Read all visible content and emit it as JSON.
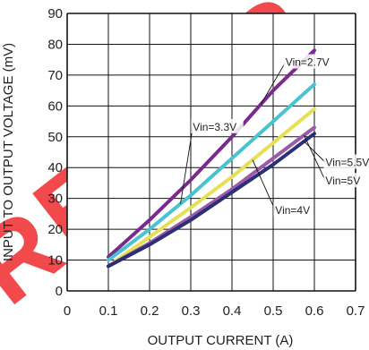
{
  "chart_data": {
    "type": "line",
    "title": "",
    "xlabel": "OUTPUT CURRENT (A)",
    "ylabel": "INPUT TO OUTPUT VOLTAGE (mV)",
    "xlim": [
      0,
      0.7
    ],
    "ylim": [
      0,
      90
    ],
    "x_ticks": [
      "0",
      "0.1",
      "0.2",
      "0.3",
      "0.4",
      "0.5",
      "0.6",
      "0.7"
    ],
    "y_ticks": [
      "0",
      "10",
      "20",
      "30",
      "40",
      "50",
      "60",
      "70",
      "80",
      "90"
    ],
    "grid": true,
    "series": [
      {
        "name": "Vin=2.7V",
        "color": "#7a2a8e",
        "x": [
          0.1,
          0.2,
          0.3,
          0.4,
          0.5,
          0.6
        ],
        "y": [
          11,
          23,
          36,
          50,
          65,
          78
        ]
      },
      {
        "name": "Vin=3.3V",
        "color": "#49c3cf",
        "x": [
          0.1,
          0.2,
          0.3,
          0.4,
          0.5,
          0.6
        ],
        "y": [
          10,
          20,
          31,
          43,
          55,
          67
        ]
      },
      {
        "name": "Vin=4V",
        "color": "#e6e055",
        "x": [
          0.1,
          0.2,
          0.3,
          0.4,
          0.5,
          0.6
        ],
        "y": [
          8,
          17.5,
          27,
          37,
          48,
          59
        ]
      },
      {
        "name": "Vin=5V",
        "color": "#9b5aa8",
        "x": [
          0.1,
          0.2,
          0.3,
          0.4,
          0.5,
          0.6
        ],
        "y": [
          8,
          15.5,
          24,
          33,
          43,
          53
        ]
      },
      {
        "name": "Vin=5.5V",
        "color": "#2a2f78",
        "x": [
          0.1,
          0.2,
          0.3,
          0.4,
          0.5,
          0.6
        ],
        "y": [
          8,
          15,
          23,
          32,
          41,
          51
        ]
      }
    ],
    "annotations": [
      {
        "text": "Vin=2.7V",
        "series": "Vin=2.7V",
        "x": 0.53,
        "y": 73
      },
      {
        "text": "Vin=3.3V",
        "series": "Vin=3.3V",
        "x": 0.305,
        "y": 52
      },
      {
        "text": "Vin=5.5V",
        "series": "Vin=5.5V",
        "x": 0.627,
        "y": 40.5
      },
      {
        "text": "Vin=5V",
        "series": "Vin=5V",
        "x": 0.627,
        "y": 34.5
      },
      {
        "text": "Vin=4V",
        "series": "Vin=4V",
        "x": 0.505,
        "y": 25
      }
    ],
    "watermark": "REFER"
  }
}
